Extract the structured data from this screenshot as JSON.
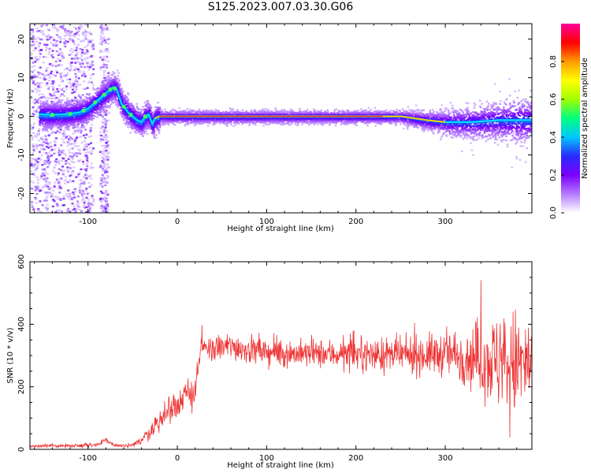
{
  "title": "S125.2023.007.03.30.G06",
  "colors": {
    "snr_line": "#ee3333",
    "ridge": "#ff2a2a",
    "halo": "#1a2cff"
  },
  "colorscale": [
    "#ffffff",
    "#b47aff",
    "#7b00ff",
    "#2a2aff",
    "#00c8ff",
    "#00ff80",
    "#a0ff00",
    "#ffff00",
    "#ff9a00",
    "#ff0000",
    "#ff0099"
  ],
  "chart_data": [
    {
      "type": "heatmap",
      "xlabel": "Height of straight line (km)",
      "ylabel": "Frequency (Hz)",
      "xlim": [
        -165,
        397
      ],
      "ylim": [
        -25,
        24
      ],
      "xticks": [
        -100,
        0,
        100,
        200,
        300
      ],
      "yticks": [
        -20,
        -10,
        0,
        10,
        20
      ],
      "ridge": {
        "x": [
          -155,
          -140,
          -125,
          -110,
          -100,
          -95,
          -90,
          -85,
          -80,
          -75,
          -72,
          -68,
          -65,
          -62,
          -58,
          -55,
          -50,
          -45,
          -40,
          -36,
          -32,
          -28,
          -25,
          -20,
          0,
          100,
          200,
          250,
          280,
          300,
          330,
          360,
          397
        ],
        "frequency": [
          0.5,
          0.4,
          0.5,
          1,
          2,
          3,
          4,
          5,
          6,
          7,
          7.5,
          7,
          5,
          3,
          2,
          1,
          0,
          -1,
          -1.5,
          0,
          0.5,
          -2,
          -0.5,
          0,
          0,
          0,
          0,
          0,
          -1,
          -1.5,
          -1.5,
          -1,
          -1
        ]
      },
      "colorbar": {
        "label": "Normalized spectral amplitude",
        "range": [
          0,
          1
        ],
        "ticks": [
          "0.0",
          "0.2",
          "0.4",
          "0.6",
          "0.8"
        ]
      }
    },
    {
      "type": "line",
      "xlabel": "Height of straight line (km)",
      "ylabel": "SNR (10 * v/v)",
      "xlim": [
        -165,
        397
      ],
      "ylim": [
        0,
        600
      ],
      "xticks": [
        -100,
        0,
        100,
        200,
        300
      ],
      "yticks": [
        0,
        200,
        400,
        600
      ],
      "envelope": {
        "x": [
          -165,
          -120,
          -90,
          -80,
          -70,
          -60,
          -50,
          -40,
          -30,
          -20,
          -10,
          0,
          10,
          20,
          26,
          35,
          60,
          100,
          150,
          200,
          250,
          300,
          320,
          340,
          360,
          380,
          397
        ],
        "mean": [
          10,
          12,
          15,
          28,
          14,
          10,
          12,
          30,
          60,
          90,
          120,
          150,
          170,
          190,
          320,
          320,
          330,
          310,
          305,
          305,
          300,
          305,
          300,
          290,
          280,
          270,
          270
        ],
        "spread": [
          5,
          6,
          7,
          10,
          8,
          6,
          8,
          15,
          25,
          40,
          45,
          50,
          50,
          55,
          35,
          40,
          45,
          45,
          45,
          50,
          55,
          70,
          90,
          120,
          160,
          180,
          160
        ]
      }
    }
  ]
}
